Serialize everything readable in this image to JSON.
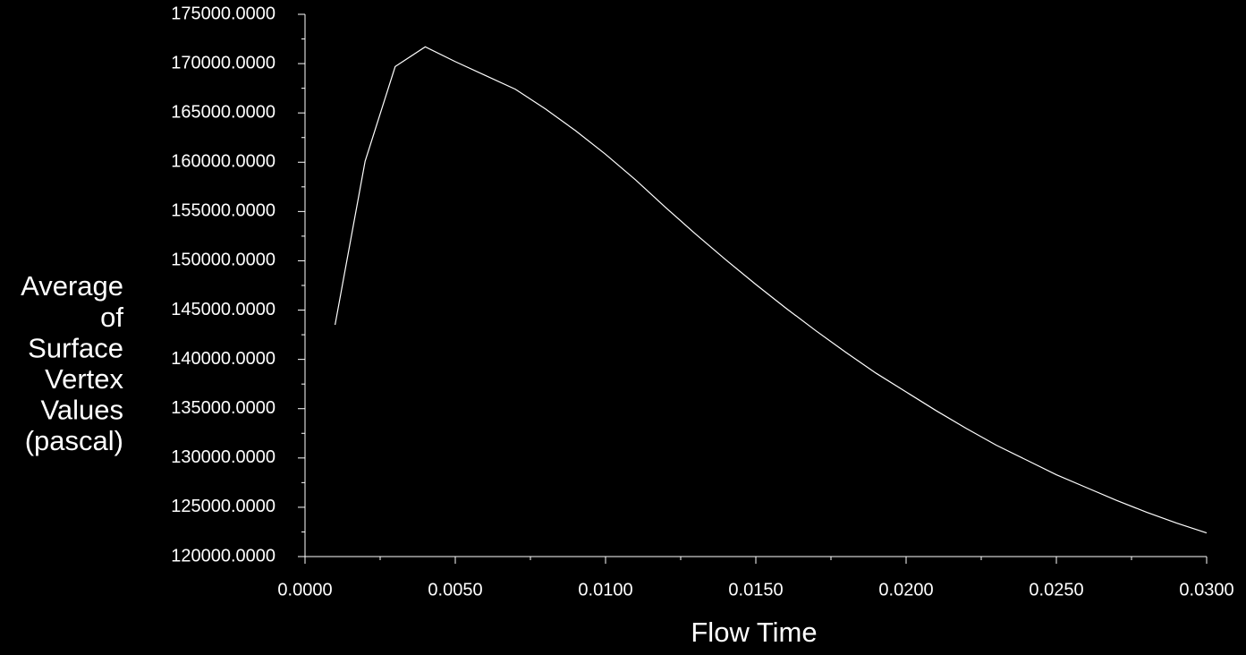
{
  "chart_data": {
    "type": "line",
    "xlabel": "Flow Time",
    "ylabel": [
      "Average",
      "of",
      "Surface",
      "Vertex",
      "Values",
      "(pascal)"
    ],
    "x": [
      0.001,
      0.002,
      0.003,
      0.004,
      0.005,
      0.006,
      0.007,
      0.008,
      0.009,
      0.01,
      0.011,
      0.012,
      0.013,
      0.014,
      0.015,
      0.016,
      0.017,
      0.018,
      0.019,
      0.02,
      0.021,
      0.022,
      0.023,
      0.024,
      0.025,
      0.026,
      0.027,
      0.028,
      0.029,
      0.03
    ],
    "series": [
      {
        "color": "#ffffff",
        "values": [
          143500,
          160100,
          169700,
          171700,
          170200,
          168800,
          167400,
          165400,
          163200,
          160800,
          158200,
          155400,
          152700,
          150100,
          147600,
          145200,
          142900,
          140700,
          138600,
          136700,
          134800,
          133000,
          131300,
          129800,
          128300,
          127000,
          125700,
          124500,
          123400,
          122400
        ]
      }
    ],
    "xlim": [
      0,
      0.03
    ],
    "ylim": [
      120000,
      175000
    ],
    "xticks": [
      {
        "value": 0,
        "label": "0.0000"
      },
      {
        "value": 0.005,
        "label": "0.0050"
      },
      {
        "value": 0.01,
        "label": "0.0100"
      },
      {
        "value": 0.015,
        "label": "0.0150"
      },
      {
        "value": 0.02,
        "label": "0.0200"
      },
      {
        "value": 0.025,
        "label": "0.0250"
      },
      {
        "value": 0.03,
        "label": "0.0300"
      }
    ],
    "yticks": [
      {
        "value": 120000,
        "label": "120000.0000"
      },
      {
        "value": 125000,
        "label": "125000.0000"
      },
      {
        "value": 130000,
        "label": "130000.0000"
      },
      {
        "value": 135000,
        "label": "135000.0000"
      },
      {
        "value": 140000,
        "label": "140000.0000"
      },
      {
        "value": 145000,
        "label": "145000.0000"
      },
      {
        "value": 150000,
        "label": "150000.0000"
      },
      {
        "value": 155000,
        "label": "155000.0000"
      },
      {
        "value": 160000,
        "label": "160000.0000"
      },
      {
        "value": 165000,
        "label": "165000.0000"
      },
      {
        "value": 170000,
        "label": "170000.0000"
      },
      {
        "value": 175000,
        "label": "175000.0000"
      }
    ],
    "grid": false
  }
}
